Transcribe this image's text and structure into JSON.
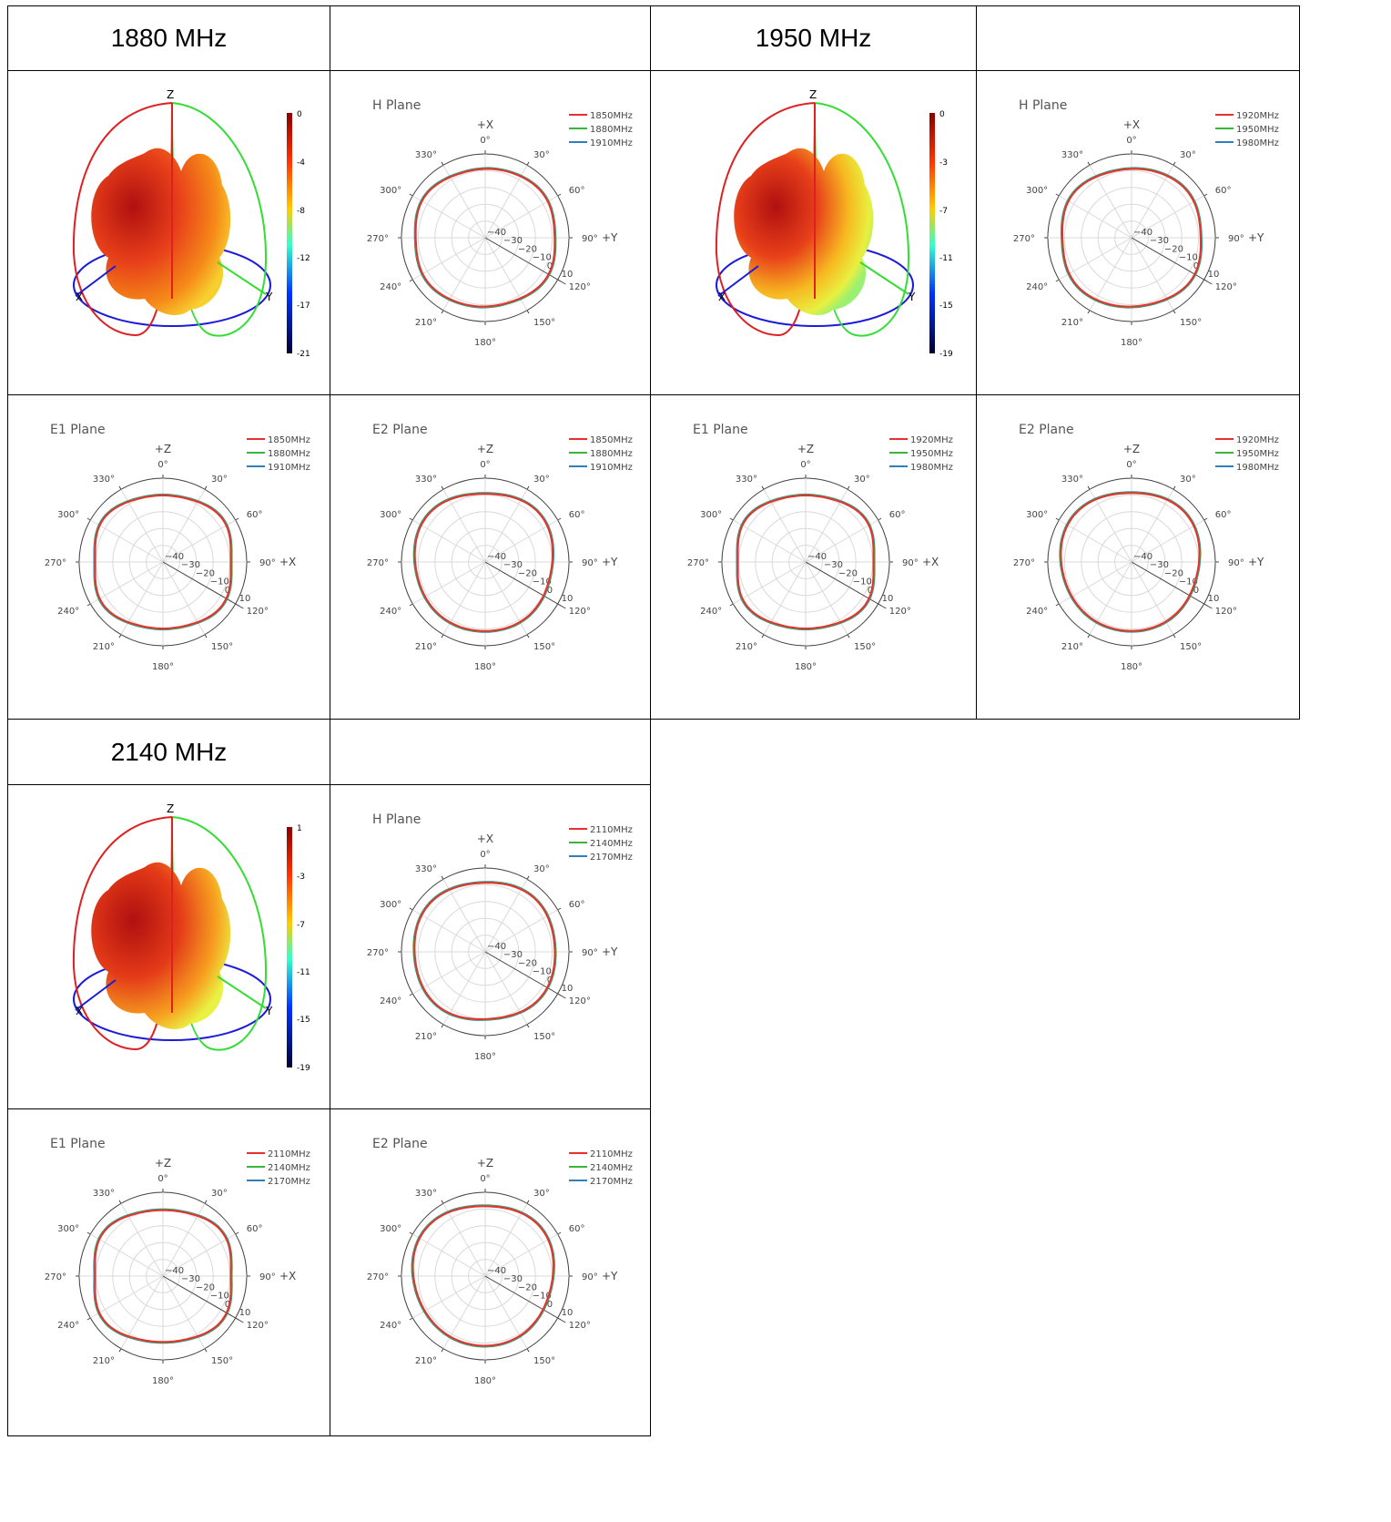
{
  "colors": {
    "c1": "#e8312e",
    "c2": "#3bb53b",
    "c3": "#2f7fbd",
    "grid": "#d9d9d9",
    "axis": "#555555"
  },
  "bands": [
    {
      "title": "1880 MHz",
      "colorbar_ticks": [
        "0",
        "-4",
        "-8",
        "-12",
        "-17",
        "-21"
      ],
      "freqs": [
        "1850MHz",
        "1880MHz",
        "1910MHz"
      ]
    },
    {
      "title": "1950 MHz",
      "colorbar_ticks": [
        "0",
        "-3",
        "-7",
        "-11",
        "-15",
        "-19"
      ],
      "freqs": [
        "1920MHz",
        "1950MHz",
        "1980MHz"
      ]
    },
    {
      "title": "2140 MHz",
      "colorbar_ticks": [
        "1",
        "-3",
        "-7",
        "-11",
        "-15",
        "-19"
      ],
      "freqs": [
        "2110MHz",
        "2140MHz",
        "2170MHz"
      ]
    }
  ],
  "pattern_3d": {
    "axis_labels": [
      "Z",
      "X",
      "Y"
    ]
  },
  "polar_common": {
    "angle_ticks": [
      "0°",
      "30°",
      "60°",
      "90°",
      "120°",
      "150°",
      "180°",
      "210°",
      "240°",
      "270°",
      "300°",
      "330°"
    ],
    "radial_ticks": [
      "−40",
      "−30",
      "−20",
      "−10",
      "0",
      "10"
    ],
    "plane_titles": {
      "H": "H Plane",
      "E1": "E1 Plane",
      "E2": "E2 Plane"
    },
    "top_labels": {
      "H": "+X",
      "E1": "+Z",
      "E2": "+Z"
    },
    "right_labels": {
      "H": "+Y",
      "E1": "+X",
      "E2": "+Y"
    }
  },
  "chart_data": [
    {
      "type": "polar",
      "title": "H Plane",
      "band": 0,
      "series_names": [
        "1850MHz",
        "1880MHz",
        "1910MHz"
      ],
      "radial_range": [
        -40,
        10
      ],
      "shape_r_dBi": {
        "base": 2.5,
        "terms": [
          [
            2,
            -0.6,
            0
          ],
          [
            4,
            -1.0,
            0.3
          ],
          [
            6,
            0.4,
            0
          ]
        ]
      }
    },
    {
      "type": "polar",
      "title": "H Plane",
      "band": 1,
      "series_names": [
        "1920MHz",
        "1950MHz",
        "1980MHz"
      ],
      "radial_range": [
        -40,
        10
      ],
      "shape_r_dBi": {
        "base": 2.5,
        "terms": [
          [
            2,
            -0.4,
            0
          ],
          [
            4,
            -1.1,
            0.3
          ],
          [
            6,
            0.3,
            0
          ]
        ]
      }
    },
    {
      "type": "polar",
      "title": "E1 Plane",
      "band": 0,
      "series_names": [
        "1850MHz",
        "1880MHz",
        "1910MHz"
      ],
      "radial_range": [
        -40,
        10
      ],
      "shape_r_dBi": {
        "base": 2.0,
        "terms": [
          [
            2,
            -1.0,
            0
          ],
          [
            4,
            -1.6,
            0
          ],
          [
            6,
            0.6,
            0
          ]
        ]
      }
    },
    {
      "type": "polar",
      "title": "E2 Plane",
      "band": 0,
      "series_names": [
        "1850MHz",
        "1880MHz",
        "1910MHz"
      ],
      "radial_range": [
        -40,
        10
      ],
      "shape_r_dBi": {
        "base": 2.0,
        "terms": [
          [
            1,
            1.0,
            0.8
          ],
          [
            3,
            -1.0,
            0.2
          ],
          [
            4,
            -0.8,
            0
          ]
        ]
      }
    },
    {
      "type": "polar",
      "title": "E1 Plane",
      "band": 1,
      "series_names": [
        "1920MHz",
        "1950MHz",
        "1980MHz"
      ],
      "radial_range": [
        -40,
        10
      ],
      "shape_r_dBi": {
        "base": 2.0,
        "terms": [
          [
            2,
            -1.0,
            0
          ],
          [
            4,
            -1.6,
            0
          ],
          [
            6,
            0.6,
            0
          ]
        ]
      }
    },
    {
      "type": "polar",
      "title": "E2 Plane",
      "band": 1,
      "series_names": [
        "1920MHz",
        "1950MHz",
        "1980MHz"
      ],
      "radial_range": [
        -40,
        10
      ],
      "shape_r_dBi": {
        "base": 2.0,
        "terms": [
          [
            1,
            1.2,
            0.6
          ],
          [
            3,
            -1.0,
            0.2
          ],
          [
            4,
            -0.6,
            0
          ]
        ]
      }
    },
    {
      "type": "polar",
      "title": "H Plane",
      "band": 2,
      "series_names": [
        "2110MHz",
        "2140MHz",
        "2170MHz"
      ],
      "radial_range": [
        -40,
        10
      ],
      "shape_r_dBi": {
        "base": 2.5,
        "terms": [
          [
            1,
            0.6,
            0.5
          ],
          [
            2,
            -0.6,
            0
          ],
          [
            4,
            -1.0,
            0.3
          ]
        ]
      }
    },
    {
      "type": "polar",
      "title": "E1 Plane",
      "band": 2,
      "series_names": [
        "2110MHz",
        "2140MHz",
        "2170MHz"
      ],
      "radial_range": [
        -40,
        10
      ],
      "shape_r_dBi": {
        "base": 2.0,
        "terms": [
          [
            2,
            -1.2,
            0
          ],
          [
            4,
            -1.8,
            0
          ],
          [
            6,
            0.6,
            0
          ]
        ]
      }
    },
    {
      "type": "polar",
      "title": "E2 Plane",
      "band": 2,
      "series_names": [
        "2110MHz",
        "2140MHz",
        "2170MHz"
      ],
      "radial_range": [
        -40,
        10
      ],
      "shape_r_dBi": {
        "base": 2.5,
        "terms": [
          [
            1,
            1.6,
            0.7
          ],
          [
            3,
            -1.2,
            0.2
          ],
          [
            4,
            -0.6,
            0
          ]
        ]
      }
    }
  ]
}
